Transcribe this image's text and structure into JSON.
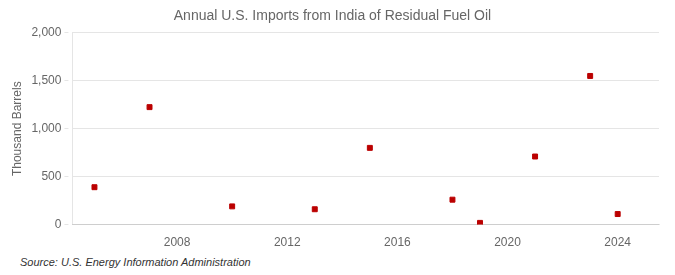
{
  "chart_data": {
    "type": "scatter",
    "title": "Annual U.S. Imports from India of Residual Fuel Oil",
    "y_label": "Thousand Barrels",
    "annotations": [
      "Source: U.S. Energy Information Administration"
    ],
    "x": [
      2005,
      2007,
      2010,
      2013,
      2015,
      2018,
      2019,
      2021,
      2023,
      2024
    ],
    "values": [
      390,
      1225,
      190,
      160,
      800,
      260,
      18,
      710,
      1550,
      110
    ],
    "color": "#bb0000",
    "marker": "square",
    "xlim": [
      2004.2,
      2025.5
    ],
    "xticks": [
      2008,
      2012,
      2016,
      2020,
      2024
    ],
    "ylim": [
      0,
      2000
    ],
    "yticks": [
      0,
      500,
      {
        "value": 1000,
        "label": "1,000"
      },
      {
        "value": 1500,
        "label": "1,500"
      },
      {
        "value": 2000,
        "label": "2,000"
      }
    ],
    "grid": "y"
  }
}
